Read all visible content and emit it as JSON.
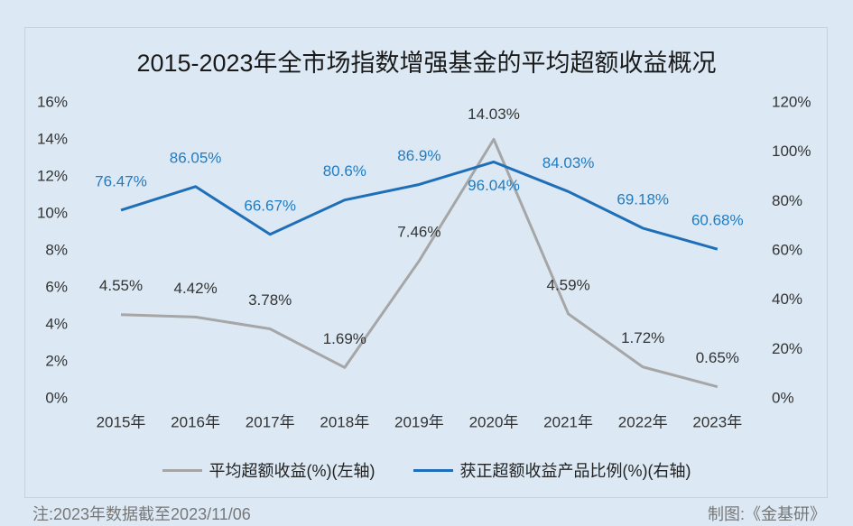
{
  "chart_data": {
    "type": "line",
    "title": "2015-2023年全市场指数增强基金的平均超额收益概况",
    "categories": [
      "2015年",
      "2016年",
      "2017年",
      "2018年",
      "2019年",
      "2020年",
      "2021年",
      "2022年",
      "2023年"
    ],
    "left_axis": {
      "ticks": [
        "0%",
        "2%",
        "4%",
        "6%",
        "8%",
        "10%",
        "12%",
        "14%",
        "16%"
      ],
      "ylim": [
        0,
        16
      ]
    },
    "right_axis": {
      "ticks": [
        "0%",
        "20%",
        "40%",
        "60%",
        "80%",
        "100%",
        "120%"
      ],
      "ylim": [
        0,
        120
      ]
    },
    "series": [
      {
        "name": "平均超额收益(%)(左轴)",
        "axis": "left",
        "color": "#a6a6a6",
        "values": [
          4.55,
          4.42,
          3.78,
          1.69,
          7.46,
          14.03,
          4.59,
          1.72,
          0.65
        ],
        "labels": [
          "4.55%",
          "4.42%",
          "3.78%",
          "1.69%",
          "7.46%",
          "14.03%",
          "4.59%",
          "1.72%",
          "0.65%"
        ]
      },
      {
        "name": "获正超额收益产品比例(%)(右轴)",
        "axis": "right",
        "color": "#1f6fb8",
        "values": [
          76.47,
          86.05,
          66.67,
          80.6,
          86.9,
          96.04,
          84.03,
          69.18,
          60.68
        ],
        "labels": [
          "76.47%",
          "86.05%",
          "66.67%",
          "80.6%",
          "86.9%",
          "96.04%",
          "84.03%",
          "69.18%",
          "60.68%"
        ]
      }
    ],
    "grid": false,
    "legend": "bottom"
  },
  "footnote": "注:2023年数据截至2023/11/06",
  "credit": "制图:《金基研》"
}
